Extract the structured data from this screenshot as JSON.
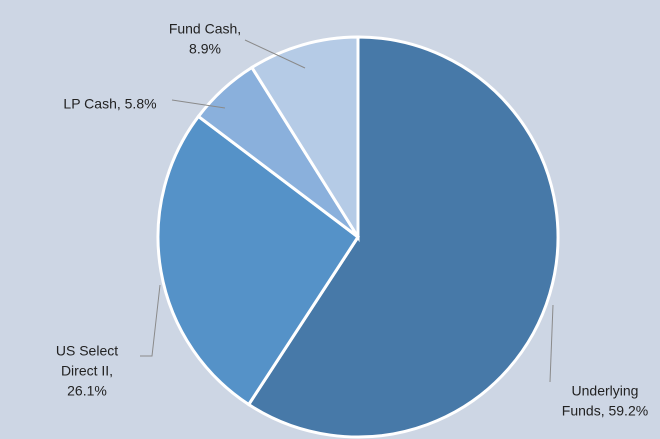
{
  "chart_data": {
    "type": "pie",
    "values": [
      59.2,
      26.1,
      5.8,
      8.9
    ],
    "value_labels": [
      [
        "Underlying",
        "Funds, 59.2%"
      ],
      [
        "US Select",
        "Direct II,",
        "26.1%"
      ],
      [
        "LP Cash, 5.8%"
      ],
      [
        "Fund Cash,",
        "8.9%"
      ]
    ],
    "colors": [
      "#4779a8",
      "#5592c8",
      "#8ab0dc",
      "#b5cbe6"
    ],
    "background": "#cdd6e4"
  }
}
